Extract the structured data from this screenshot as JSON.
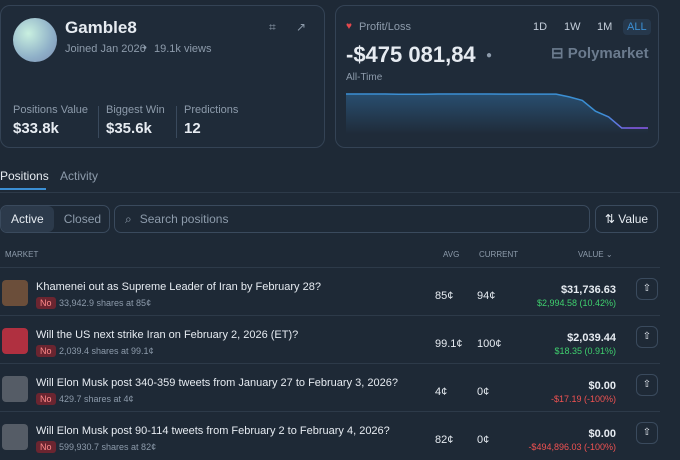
{
  "profile": {
    "name": "Gamble8",
    "joined": "Joined Jan 2026",
    "views": "19.1k views",
    "stats": [
      {
        "label": "Positions Value",
        "value": "$33.8k"
      },
      {
        "label": "Biggest Win",
        "value": "$35.6k"
      },
      {
        "label": "Predictions",
        "value": "12"
      }
    ]
  },
  "pnl": {
    "label": "Profit/Loss",
    "ranges": [
      "1D",
      "1W",
      "1M",
      "ALL"
    ],
    "amount": "-$475 081,84",
    "period": "All-Time",
    "brand": "Polymarket",
    "chart": {
      "values": [
        0,
        0,
        0,
        0,
        -3000,
        -3000,
        -3000,
        0,
        0,
        0,
        0,
        0,
        -1000,
        -1000,
        -1000,
        -1000,
        -2000,
        -40000,
        -90000,
        -240000,
        -320000,
        -475082,
        -475082,
        -475082
      ]
    }
  },
  "tabs": [
    "Positions",
    "Activity"
  ],
  "filters": [
    "Active",
    "Closed"
  ],
  "search": "Search positions",
  "sort": "Value",
  "table": {
    "headers": [
      "MARKET",
      "AVG",
      "CURRENT",
      "VALUE"
    ],
    "rows": [
      {
        "title": "Khamenei out as Supreme Leader of Iran by February 28?",
        "outcome": "No",
        "shares": "33,942.9 shares at 85¢",
        "avg": "85¢",
        "current": "94¢",
        "value": "$31,736.63",
        "change": "$2,994.58 (10.42%)"
      },
      {
        "title": "Will the US next strike Iran on February 2, 2026 (ET)?",
        "outcome": "No",
        "shares": "2,039.4 shares at 99.1¢",
        "avg": "99.1¢",
        "current": "100¢",
        "value": "$2,039.44",
        "change": "$18.35 (0.91%)"
      },
      {
        "title": "Will Elon Musk post 340-359 tweets from January 27 to February 3, 2026?",
        "outcome": "No",
        "shares": "429.7 shares at 4¢",
        "avg": "4¢",
        "current": "0¢",
        "value": "$0.00",
        "change": "-$17.19 (-100%)"
      },
      {
        "title": "Will Elon Musk post 90-114 tweets from February 2 to February 4, 2026?",
        "outcome": "No",
        "shares": "599,930.7 shares at 82¢",
        "avg": "82¢",
        "current": "0¢",
        "value": "$0.00",
        "change": "-$494,896.03 (-100%)"
      }
    ]
  }
}
